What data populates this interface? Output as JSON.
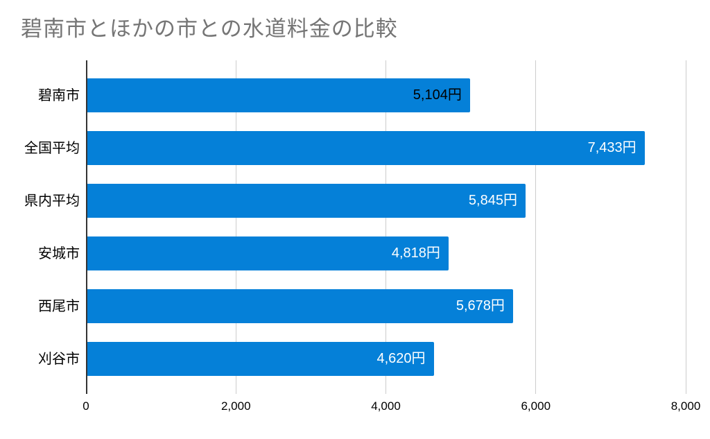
{
  "chart_data": {
    "type": "bar",
    "orientation": "horizontal",
    "title": "碧南市とほかの市との水道料金の比較",
    "xlabel": "",
    "ylabel": "",
    "categories": [
      "碧南市",
      "全国平均",
      "県内平均",
      "安城市",
      "西尾市",
      "刈谷市"
    ],
    "values": [
      5104,
      7433,
      5845,
      4818,
      5678,
      4620
    ],
    "value_labels": [
      "5,104円",
      "7,433円",
      "5,845円",
      "4,818円",
      "5,678円",
      "4,620円"
    ],
    "value_label_colors": [
      "#000000",
      "#ffffff",
      "#ffffff",
      "#ffffff",
      "#ffffff",
      "#ffffff"
    ],
    "xlim": [
      0,
      8000
    ],
    "x_ticks": [
      0,
      2000,
      4000,
      6000,
      8000
    ],
    "x_tick_labels": [
      "0",
      "2,000",
      "4,000",
      "6,000",
      "8,000"
    ],
    "grid": true,
    "legend": "none",
    "colors": {
      "bar": "#0580d8",
      "title": "#757575",
      "gridline": "#cccccc",
      "axis_line": "#333333",
      "category_label": "#000000",
      "tick_label": "#000000"
    }
  }
}
